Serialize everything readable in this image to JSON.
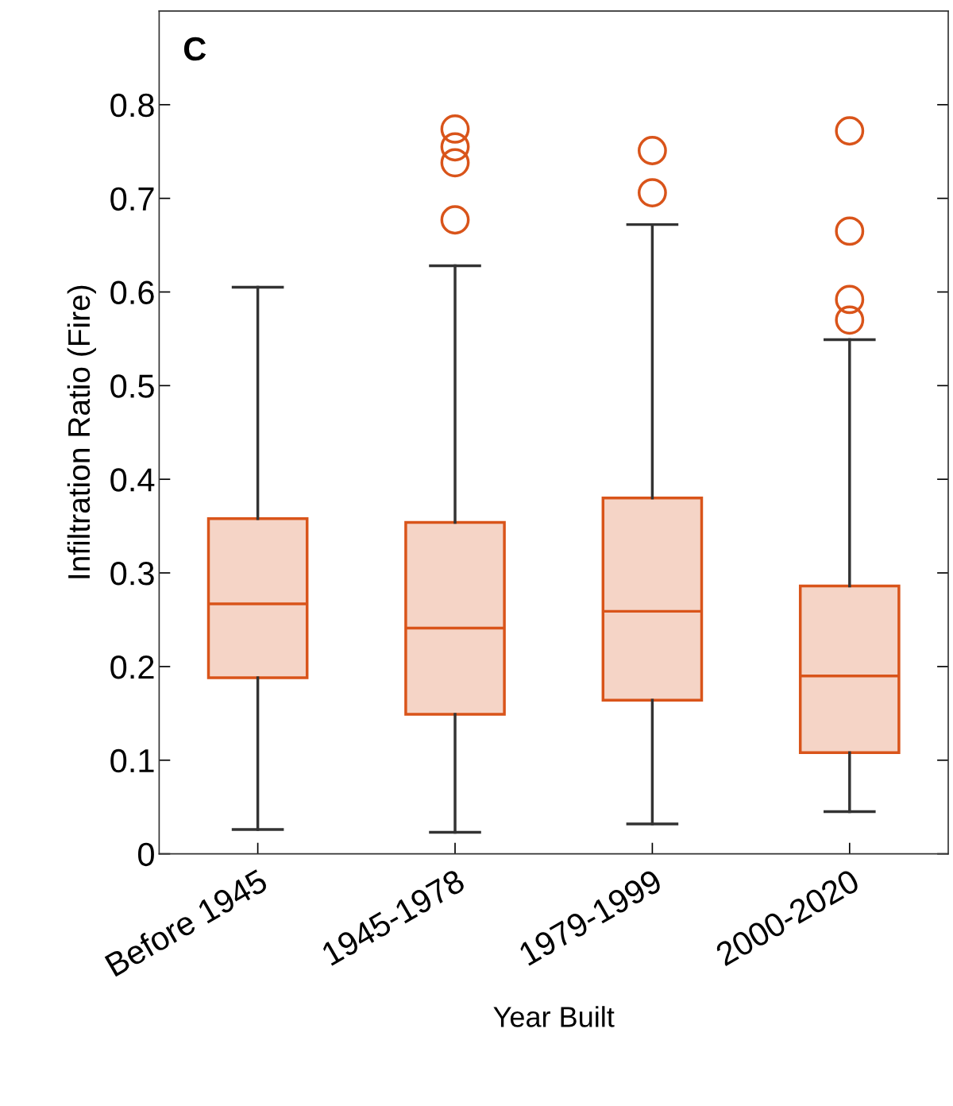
{
  "chart_data": {
    "type": "box",
    "xlabel": "Year Built",
    "ylabel": "Infiltration Ratio (Fire)",
    "annotations": [
      "C"
    ],
    "categories": [
      "Before 1945",
      "1945-1978",
      "1979-1999",
      "2000-2020"
    ],
    "series": [
      {
        "color": "#d9541a",
        "boxes": [
          {
            "low": 0.026,
            "q1": 0.188,
            "median": 0.267,
            "q3": 0.358,
            "high": 0.605
          },
          {
            "low": 0.023,
            "q1": 0.149,
            "median": 0.241,
            "q3": 0.354,
            "high": 0.628,
            "outliers": [
              0.774,
              0.755,
              0.738,
              0.677
            ]
          },
          {
            "low": 0.032,
            "q1": 0.164,
            "median": 0.259,
            "q3": 0.38,
            "high": 0.672,
            "outliers": [
              0.751,
              0.706
            ]
          },
          {
            "low": 0.045,
            "q1": 0.108,
            "median": 0.19,
            "q3": 0.286,
            "high": 0.549,
            "outliers": [
              0.772,
              0.665,
              0.592,
              0.57
            ]
          }
        ]
      }
    ],
    "ylim": [
      0,
      0.9
    ],
    "yticks": [
      0,
      0.1,
      0.2,
      0.3,
      0.4,
      0.5,
      0.6,
      0.7,
      0.8
    ],
    "grid": false,
    "legend": false
  }
}
